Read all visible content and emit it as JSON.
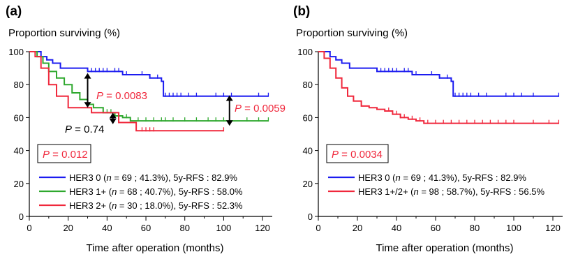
{
  "colors": {
    "blue": "#1c1cf0",
    "green": "#2ea82e",
    "red": "#f0283c",
    "black": "#000000"
  },
  "chart_data": [
    {
      "type": "line",
      "panel_label": "(a)",
      "ylabel": "Proportion surviving (%)",
      "xlabel": "Time after operation (months)",
      "xlim": [
        0,
        125
      ],
      "ylim": [
        0,
        100
      ],
      "xticks": [
        "0",
        "20",
        "40",
        "60",
        "80",
        "100",
        "120"
      ],
      "yticks": [
        "0",
        "20",
        "40",
        "60",
        "80",
        "100"
      ],
      "pvalue_box": {
        "letter": "P",
        "text": " = 0.012"
      },
      "annotations": [
        {
          "letter": "P",
          "text": " = 0.0083",
          "color": "red"
        },
        {
          "letter": "P",
          "text": " = 0.0059",
          "color": "red"
        },
        {
          "letter": "P",
          "text": " = 0.74",
          "color": "black"
        }
      ],
      "legend": [
        {
          "name": "HER3 0",
          "pre": " (",
          "n": "n",
          "post": " = 69 ; 41.3%), 5y-RFS : 82.9%",
          "color": "blue"
        },
        {
          "name": "HER3 1+",
          "pre": " (",
          "n": "n",
          "post": " = 68 ; 40.7%), 5y-RFS : 58.0%",
          "color": "green"
        },
        {
          "name": "HER3 2+",
          "pre": " (",
          "n": "n",
          "post": " = 30 ; 18.0%), 5y-RFS : 52.3%",
          "color": "red"
        }
      ],
      "series": [
        {
          "name": "HER3 0",
          "color": "blue",
          "x": [
            0,
            3,
            6,
            9,
            12,
            16,
            22,
            30,
            42,
            48,
            55,
            62,
            68,
            69,
            123
          ],
          "y": [
            100,
            100,
            97,
            95,
            93,
            90,
            90,
            88,
            88,
            86,
            86,
            84,
            82,
            73,
            73
          ],
          "censors": [
            32,
            34,
            36,
            38,
            40,
            44,
            46,
            50,
            58,
            62,
            66,
            70,
            72,
            74,
            76,
            78,
            82,
            86,
            96,
            100,
            104,
            118,
            123
          ]
        },
        {
          "name": "HER3 1+",
          "color": "green",
          "x": [
            0,
            4,
            7,
            10,
            14,
            18,
            22,
            26,
            30,
            33,
            38,
            44,
            48,
            52,
            123
          ],
          "y": [
            100,
            97,
            93,
            88,
            84,
            80,
            75,
            71,
            68,
            66,
            63,
            61,
            60,
            58,
            58
          ],
          "censors": [
            40,
            42,
            46,
            50,
            56,
            60,
            64,
            68,
            70,
            74,
            80,
            86,
            92,
            96,
            100,
            112,
            118,
            123
          ]
        },
        {
          "name": "HER3 2+",
          "color": "red",
          "x": [
            0,
            3,
            6,
            10,
            14,
            20,
            26,
            32,
            40,
            46,
            55,
            100
          ],
          "y": [
            100,
            97,
            90,
            80,
            73,
            66,
            66,
            63,
            63,
            57,
            52,
            52
          ],
          "censors": [
            58,
            60,
            62,
            64,
            100
          ]
        }
      ]
    },
    {
      "type": "line",
      "panel_label": "(b)",
      "ylabel": "Proportion surviving (%)",
      "xlabel": "Time after operation (months)",
      "xlim": [
        0,
        125
      ],
      "ylim": [
        0,
        100
      ],
      "xticks": [
        "0",
        "20",
        "40",
        "60",
        "80",
        "100",
        "120"
      ],
      "yticks": [
        "0",
        "20",
        "40",
        "60",
        "80",
        "100"
      ],
      "pvalue_box": {
        "letter": "P",
        "text": " = 0.0034"
      },
      "annotations": [],
      "legend": [
        {
          "name": "HER3 0",
          "pre": " (",
          "n": "n",
          "post": " = 69 ; 41.3%), 5y-RFS : 82.9%",
          "color": "blue"
        },
        {
          "name": "HER3 1+/2+",
          "pre": " (",
          "n": "n",
          "post": " = 98 ; 58.7%), 5y-RFS : 56.5%",
          "color": "red"
        }
      ],
      "series": [
        {
          "name": "HER3 0",
          "color": "blue",
          "x": [
            0,
            3,
            6,
            9,
            12,
            16,
            22,
            30,
            42,
            48,
            55,
            62,
            68,
            69,
            123
          ],
          "y": [
            100,
            100,
            97,
            95,
            93,
            90,
            90,
            88,
            88,
            86,
            86,
            84,
            82,
            73,
            73
          ],
          "censors": [
            32,
            34,
            36,
            38,
            40,
            44,
            46,
            50,
            58,
            62,
            66,
            70,
            72,
            74,
            76,
            78,
            82,
            86,
            96,
            100,
            104,
            110,
            123
          ]
        },
        {
          "name": "HER3 1+/2+",
          "color": "red",
          "x": [
            0,
            3,
            6,
            9,
            12,
            15,
            18,
            22,
            26,
            30,
            34,
            38,
            42,
            46,
            50,
            54,
            123
          ],
          "y": [
            100,
            96,
            90,
            84,
            78,
            73,
            70,
            67,
            66,
            65,
            64,
            62,
            60,
            59,
            58,
            56.5,
            56.5
          ],
          "censors": [
            36,
            38,
            40,
            42,
            44,
            48,
            52,
            56,
            60,
            64,
            68,
            72,
            76,
            80,
            84,
            88,
            92,
            96,
            100,
            110,
            118,
            123
          ]
        }
      ]
    }
  ]
}
